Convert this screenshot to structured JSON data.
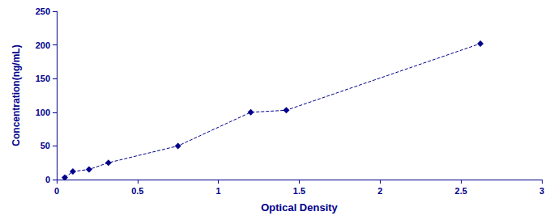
{
  "chart_data": {
    "type": "line",
    "x": [
      0.05,
      0.1,
      0.2,
      0.32,
      0.75,
      1.2,
      1.42,
      2.62
    ],
    "values": [
      3,
      12,
      15,
      25,
      50,
      100,
      103,
      202
    ],
    "color": "#00008B",
    "marker": "diamond",
    "line_style": "dashed",
    "xlabel": "Optical Density",
    "ylabel": "Concentration(ng/mL)",
    "xlim": [
      0,
      3
    ],
    "ylim": [
      0,
      250
    ],
    "xticks": [
      0,
      0.5,
      1,
      1.5,
      2,
      2.5,
      3
    ],
    "yticks": [
      0,
      50,
      100,
      150,
      200,
      250
    ],
    "grid": false
  }
}
